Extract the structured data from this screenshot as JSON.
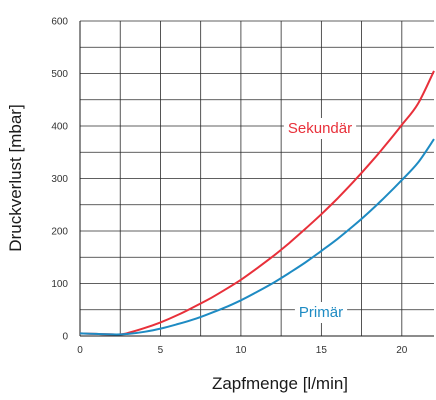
{
  "chart_data": {
    "type": "line",
    "xlabel": "Zapfmenge [l/min]",
    "ylabel": "Druckverlust [mbar]",
    "xlim": [
      0,
      22
    ],
    "ylim": [
      0,
      600
    ],
    "x_ticks": [
      0,
      5,
      10,
      15,
      20
    ],
    "y_ticks": [
      0,
      100,
      200,
      300,
      400,
      500,
      600
    ],
    "grid": true,
    "series": [
      {
        "name": "Sekundär",
        "color": "#e8303a",
        "x": [
          0,
          1,
          2,
          2.5,
          3,
          4,
          5,
          6,
          7,
          8,
          9,
          10,
          11,
          12,
          13,
          14,
          15,
          16,
          17,
          18,
          19,
          20,
          21,
          22
        ],
        "y": [
          5,
          4,
          3,
          3,
          6,
          15,
          26,
          39,
          54,
          70,
          88,
          107,
          129,
          152,
          177,
          204,
          232,
          262,
          294,
          328,
          364,
          402,
          442,
          505
        ]
      },
      {
        "name": "Primär",
        "color": "#1e8bc3",
        "x": [
          0,
          1,
          2,
          2.5,
          3,
          4,
          5,
          6,
          7,
          8,
          9,
          10,
          11,
          12,
          13,
          14,
          15,
          16,
          17,
          18,
          19,
          20,
          21,
          22
        ],
        "y": [
          5,
          4,
          3,
          3,
          4,
          8,
          14,
          22,
          31,
          42,
          54,
          68,
          84,
          101,
          120,
          140,
          162,
          185,
          210,
          237,
          266,
          297,
          330,
          375
        ]
      }
    ]
  }
}
